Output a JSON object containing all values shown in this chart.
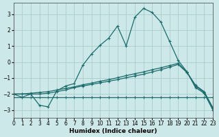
{
  "xlabel": "Humidex (Indice chaleur)",
  "bg_color": "#cce8e8",
  "grid_color": "#aacccc",
  "line_color": "#1a6b6b",
  "xlim": [
    0,
    23
  ],
  "ylim": [
    -3.5,
    3.7
  ],
  "xticks": [
    0,
    1,
    2,
    3,
    4,
    5,
    6,
    7,
    8,
    9,
    10,
    11,
    12,
    13,
    14,
    15,
    16,
    17,
    18,
    19,
    20,
    21,
    22,
    23
  ],
  "yticks": [
    -3,
    -2,
    -1,
    0,
    1,
    2,
    3
  ],
  "lines": [
    {
      "x": [
        0,
        1,
        2,
        3,
        4,
        5,
        6,
        7,
        8,
        9,
        10,
        11,
        12,
        13,
        14,
        15,
        16,
        17,
        18,
        19,
        20,
        21,
        22,
        23
      ],
      "y": [
        -2.0,
        -2.2,
        -2.0,
        -2.7,
        -2.8,
        -1.8,
        -1.5,
        -1.35,
        -0.2,
        0.5,
        1.05,
        1.5,
        2.25,
        1.0,
        2.8,
        3.35,
        3.1,
        2.5,
        1.3,
        0.1,
        -0.6,
        -1.6,
        -1.95,
        -3.0
      ]
    },
    {
      "x": [
        0,
        1,
        2,
        3,
        4,
        5,
        6,
        7,
        8,
        9,
        10,
        11,
        12,
        13,
        14,
        15,
        16,
        17,
        18,
        19,
        20,
        21,
        22,
        23
      ],
      "y": [
        -2.2,
        -2.2,
        -2.2,
        -2.2,
        -2.2,
        -2.2,
        -2.2,
        -2.2,
        -2.2,
        -2.2,
        -2.2,
        -2.2,
        -2.2,
        -2.2,
        -2.2,
        -2.2,
        -2.2,
        -2.2,
        -2.2,
        -2.2,
        -2.2,
        -2.2,
        -2.2,
        -2.2
      ]
    },
    {
      "x": [
        0,
        1,
        2,
        3,
        4,
        5,
        6,
        7,
        8,
        9,
        10,
        11,
        12,
        13,
        14,
        15,
        16,
        17,
        18,
        19,
        20,
        21,
        22,
        23
      ],
      "y": [
        -2.0,
        -2.0,
        -2.0,
        -2.0,
        -1.95,
        -1.85,
        -1.75,
        -1.6,
        -1.5,
        -1.4,
        -1.3,
        -1.2,
        -1.1,
        -0.98,
        -0.87,
        -0.76,
        -0.62,
        -0.48,
        -0.32,
        -0.15,
        -0.65,
        -1.5,
        -1.9,
        -2.9
      ]
    },
    {
      "x": [
        0,
        1,
        2,
        3,
        4,
        5,
        6,
        7,
        8,
        9,
        10,
        11,
        12,
        13,
        14,
        15,
        16,
        17,
        18,
        19,
        20,
        21,
        22,
        23
      ],
      "y": [
        -2.0,
        -2.0,
        -1.95,
        -1.9,
        -1.85,
        -1.75,
        -1.65,
        -1.55,
        -1.42,
        -1.32,
        -1.2,
        -1.1,
        -0.98,
        -0.85,
        -0.73,
        -0.62,
        -0.48,
        -0.36,
        -0.22,
        -0.08,
        -0.62,
        -1.45,
        -1.85,
        -2.85
      ]
    }
  ]
}
